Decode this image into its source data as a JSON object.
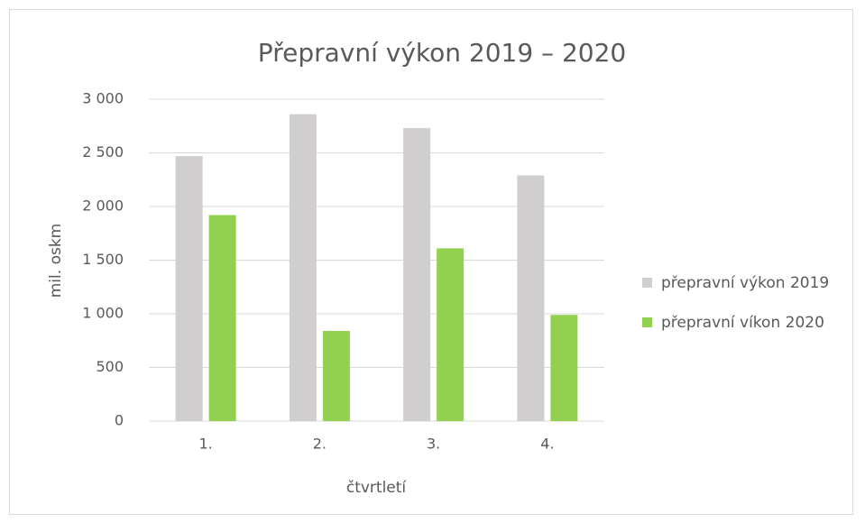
{
  "chart_data": {
    "type": "bar",
    "title": "Přepravní výkon 2019 – 2020",
    "x_label": "čtvrtletí",
    "y_label": "mil. oskm",
    "categories": [
      "1.",
      "2.",
      "3.",
      "4."
    ],
    "series": [
      {
        "name": "přepravní výkon 2019",
        "color": "#d0cece",
        "values": [
          2470,
          2860,
          2730,
          2290
        ]
      },
      {
        "name": "přepravní víkon 2020",
        "color": "#92d050",
        "values": [
          1920,
          840,
          1610,
          990
        ]
      }
    ],
    "ylim": [
      0,
      3000
    ],
    "yticks": [
      0,
      500,
      {
        "value": 1000,
        "label": "1 000"
      },
      {
        "value": 1500,
        "label": "1 500"
      },
      {
        "value": 2000,
        "label": "2 000"
      },
      {
        "value": 2500,
        "label": "2 500"
      },
      {
        "value": 3000,
        "label": "3 000"
      }
    ],
    "grid": true,
    "legend": "right"
  }
}
